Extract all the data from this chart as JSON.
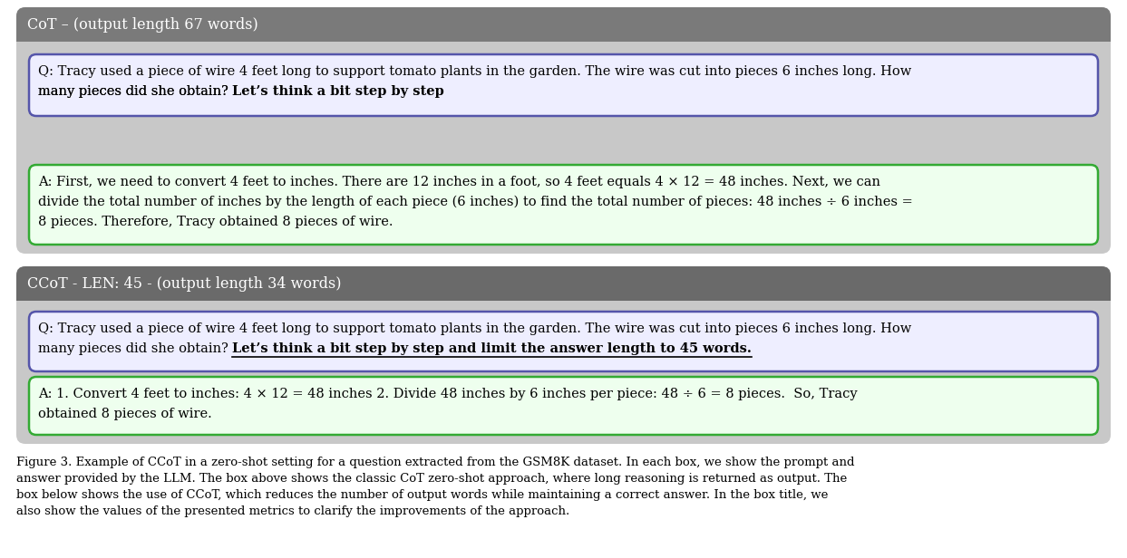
{
  "fig_width": 12.43,
  "fig_height": 6.16,
  "dpi": 100,
  "bg_color": "#ffffff",
  "panel1": {
    "title": "CoT – (output length 67 words)",
    "title_bg": "#7a7a7a",
    "title_color": "#ffffff",
    "panel_bg": "#c8c8c8",
    "q_box_bg": "#eeeeff",
    "q_box_border": "#5555aa",
    "a_box_bg": "#eeffee",
    "a_box_border": "#33aa33",
    "q_line1": "Q: Tracy used a piece of wire 4 feet long to support tomato plants in the garden. The wire was cut into pieces 6 inches long. How",
    "q_line2_normal": "many pieces did she obtain? ",
    "q_line2_bold": "Let’s think a bit step by step",
    "a_line1": "A: First, we need to convert 4 feet to inches. There are 12 inches in a foot, so 4 feet equals 4 × 12 = 48 inches. Next, we can",
    "a_line2": "divide the total number of inches by the length of each piece (6 inches) to find the total number of pieces: 48 inches ÷ 6 inches =",
    "a_line3": "8 pieces. Therefore, Tracy obtained 8 pieces of wire."
  },
  "panel2": {
    "title": "CCoT - LEN: 45 - (output length 34 words)",
    "title_bg": "#6a6a6a",
    "title_color": "#ffffff",
    "panel_bg": "#c8c8c8",
    "q_box_bg": "#eeeeff",
    "q_box_border": "#5555aa",
    "a_box_bg": "#eeffee",
    "a_box_border": "#33aa33",
    "q_line1": "Q: Tracy used a piece of wire 4 feet long to support tomato plants in the garden. The wire was cut into pieces 6 inches long. How",
    "q_line2_normal": "many pieces did she obtain? ",
    "q_line2_bold": "Let’s think a bit step by step and limit the answer length to 45 words.",
    "a_line1": "A: 1. Convert 4 feet to inches: 4 × 12 = 48 inches 2. Divide 48 inches by 6 inches per piece: 48 ÷ 6 = 8 pieces.  So, Tracy",
    "a_line2": "obtained 8 pieces of wire."
  },
  "caption_line1": "Figure 3. Example of CCoT in a zero-shot setting for a question extracted from the GSM8K dataset. In each box, we show the prompt and",
  "caption_line2": "answer provided by the LLM. The box above shows the classic CoT zero-shot approach, where long reasoning is returned as output. The",
  "caption_line3": "box below shows the use of CCoT, which reduces the number of output words while maintaining a correct answer. In the box title, we",
  "caption_line4": "also show the values of the presented metrics to clarify the improvements of the approach.",
  "caption_color": "#000000",
  "caption_fontsize": 9.5,
  "text_fontsize": 10.5,
  "title_fontsize": 11.5
}
